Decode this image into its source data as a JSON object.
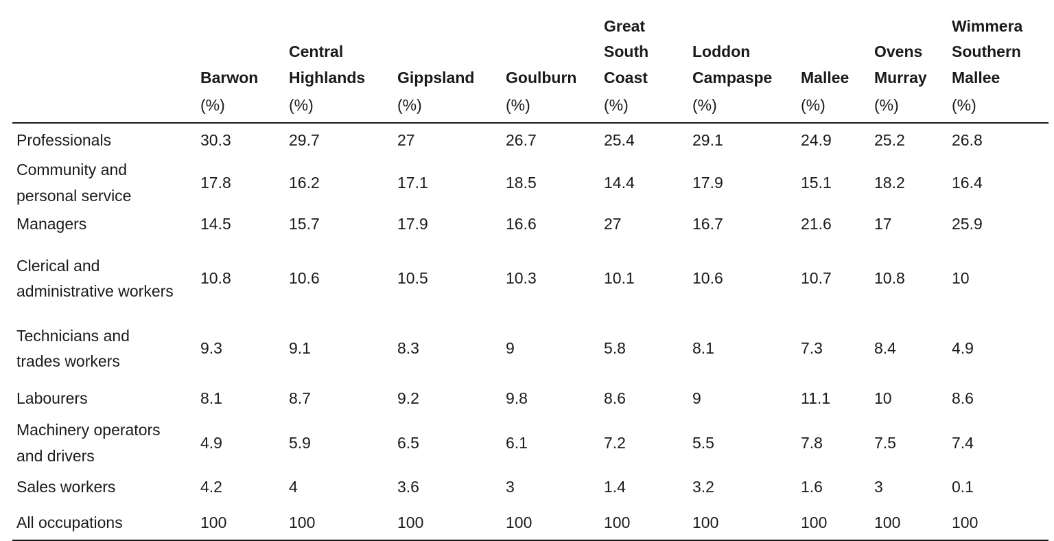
{
  "table": {
    "headers": [
      {
        "key": "barwon",
        "lines": [
          "Barwon"
        ]
      },
      {
        "key": "central-highlands",
        "lines": [
          "Central",
          "Highlands"
        ]
      },
      {
        "key": "gippsland",
        "lines": [
          "Gippsland"
        ]
      },
      {
        "key": "goulburn",
        "lines": [
          "Goulburn"
        ]
      },
      {
        "key": "great-south-coast",
        "lines": [
          "Great",
          "South",
          "Coast"
        ]
      },
      {
        "key": "loddon-campaspe",
        "lines": [
          "Loddon",
          "Campaspe"
        ]
      },
      {
        "key": "mallee",
        "lines": [
          "Mallee"
        ]
      },
      {
        "key": "ovens-murray",
        "lines": [
          "Ovens",
          "Murray"
        ]
      },
      {
        "key": "wimmera-southern-mallee",
        "lines": [
          "Wimmera",
          "Southern",
          "Mallee"
        ]
      }
    ],
    "unit": "(%)",
    "rows": [
      {
        "key": "professionals",
        "label_lines": [
          "Professionals"
        ],
        "height": 50,
        "values": [
          "30.3",
          "29.7",
          "27",
          "26.7",
          "25.4",
          "29.1",
          "24.9",
          "25.2",
          "26.8"
        ]
      },
      {
        "key": "community",
        "label_lines": [
          "Community and",
          "personal service"
        ],
        "height": 66,
        "values": [
          "17.8",
          "16.2",
          "17.1",
          "18.5",
          "14.4",
          "17.9",
          "15.1",
          "18.2",
          "16.4"
        ]
      },
      {
        "key": "managers",
        "label_lines": [
          "Managers"
        ],
        "height": 46,
        "values": [
          "14.5",
          "15.7",
          "17.9",
          "16.6",
          "27",
          "16.7",
          "21.6",
          "17",
          "25.9"
        ]
      },
      {
        "key": "clerical",
        "label_lines": [
          "Clerical and",
          "administrative workers"
        ],
        "height": 112,
        "values": [
          "10.8",
          "10.6",
          "10.5",
          "10.3",
          "10.1",
          "10.6",
          "10.7",
          "10.8",
          "10"
        ]
      },
      {
        "key": "technicians",
        "label_lines": [
          "Technicians and",
          "trades workers"
        ],
        "height": 92,
        "values": [
          "9.3",
          "9.1",
          "8.3",
          "9",
          "5.8",
          "8.1",
          "7.3",
          "8.4",
          "4.9"
        ]
      },
      {
        "key": "labourers",
        "label_lines": [
          "Labourers"
        ],
        "height": 54,
        "values": [
          "8.1",
          "8.7",
          "9.2",
          "9.8",
          "8.6",
          "9",
          "11.1",
          "10",
          "8.6"
        ]
      },
      {
        "key": "machinery",
        "label_lines": [
          "Machinery operators",
          "and drivers"
        ],
        "height": 70,
        "values": [
          "4.9",
          "5.9",
          "6.5",
          "6.1",
          "7.2",
          "5.5",
          "7.8",
          "7.5",
          "7.4"
        ]
      },
      {
        "key": "sales",
        "label_lines": [
          "Sales workers"
        ],
        "height": 54,
        "values": [
          "4.2",
          "4",
          "3.6",
          "3",
          "1.4",
          "3.2",
          "1.6",
          "3",
          "0.1"
        ]
      },
      {
        "key": "all",
        "label_lines": [
          "All occupations"
        ],
        "height": 50,
        "values": [
          "100",
          "100",
          "100",
          "100",
          "100",
          "100",
          "100",
          "100",
          "100"
        ]
      }
    ]
  }
}
